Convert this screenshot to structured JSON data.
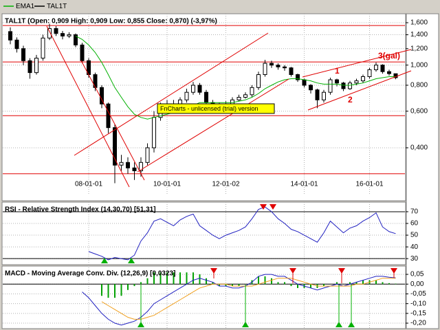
{
  "chart_data": [
    {
      "type": "candlestick",
      "title": "TAL1T (Open: 0,909  High: 0,909  Low: 0,855  Close: 0,870) (-3,97%)",
      "log_scale": true,
      "grid": true,
      "ylim": [
        0.24,
        1.74
      ],
      "yticks": [
        {
          "value": 0.4,
          "label": "0,400"
        },
        {
          "value": 0.6,
          "label": "0,600"
        },
        {
          "value": 0.8,
          "label": "0,800"
        },
        {
          "value": 1.0,
          "label": "1,000"
        },
        {
          "value": 1.2,
          "label": "1,200"
        },
        {
          "value": 1.4,
          "label": "1,400"
        },
        {
          "value": 1.6,
          "label": "1,600"
        }
      ],
      "categories": [
        null,
        null,
        null,
        null,
        null,
        null,
        null,
        null,
        null,
        null,
        null,
        null,
        "08-01-01",
        null,
        null,
        null,
        null,
        null,
        null,
        null,
        null,
        null,
        null,
        null,
        "10-01-01",
        null,
        null,
        null,
        null,
        null,
        null,
        null,
        null,
        "12-01-02",
        null,
        null,
        null,
        null,
        null,
        null,
        null,
        null,
        null,
        null,
        null,
        "14-01-01",
        null,
        null,
        null,
        null,
        null,
        null,
        null,
        null,
        null,
        "16-01-01",
        null,
        null,
        null,
        null
      ],
      "levels": [
        1.55,
        1.035,
        0.571,
        0.3
      ],
      "level_color": "#e00000",
      "annotations": [
        "1",
        "2",
        "3(gal)"
      ],
      "watermark": "FnCharts - unlicensed (trial) version",
      "series": [
        {
          "name": "TAL1T",
          "color": "#000000",
          "open": [
            1.45,
            1.32,
            1.2,
            1.05,
            0.92,
            1.08,
            1.35,
            1.5,
            1.42,
            1.38,
            1.4,
            1.25,
            1.05,
            0.9,
            0.78,
            0.65,
            0.5,
            0.33,
            0.34,
            0.32,
            0.31,
            0.34,
            0.4,
            0.56,
            0.62,
            0.65,
            0.62,
            0.68,
            0.74,
            0.8,
            0.74,
            0.66,
            0.62,
            0.64,
            0.65,
            0.68,
            0.7,
            0.72,
            0.78,
            0.9,
            1.02,
            1.0,
            0.98,
            0.97,
            0.9,
            0.85,
            0.8,
            0.76,
            0.68,
            0.74,
            0.85,
            0.82,
            0.77,
            0.82,
            0.84,
            0.88,
            0.95,
            1.0,
            0.93,
            0.909
          ],
          "high": [
            1.52,
            1.36,
            1.24,
            1.08,
            1.12,
            1.4,
            1.58,
            1.54,
            1.46,
            1.44,
            1.42,
            1.28,
            1.08,
            0.92,
            0.8,
            0.66,
            0.52,
            0.37,
            0.36,
            0.34,
            0.36,
            0.42,
            0.6,
            0.66,
            0.68,
            0.68,
            0.7,
            0.77,
            0.83,
            0.82,
            0.76,
            0.68,
            0.66,
            0.67,
            0.7,
            0.72,
            0.74,
            0.8,
            0.93,
            1.06,
            1.05,
            1.02,
            1.0,
            0.98,
            0.91,
            0.86,
            0.81,
            0.77,
            0.76,
            0.87,
            0.86,
            0.83,
            0.84,
            0.86,
            0.9,
            0.97,
            1.03,
            1.01,
            0.95,
            0.909
          ],
          "low": [
            1.26,
            1.15,
            1.0,
            0.86,
            0.9,
            1.05,
            1.32,
            1.38,
            1.33,
            1.35,
            1.22,
            1.02,
            0.87,
            0.75,
            0.62,
            0.47,
            0.27,
            0.31,
            0.3,
            0.28,
            0.29,
            0.33,
            0.38,
            0.54,
            0.6,
            0.6,
            0.6,
            0.66,
            0.72,
            0.72,
            0.64,
            0.6,
            0.61,
            0.62,
            0.64,
            0.67,
            0.69,
            0.7,
            0.76,
            0.88,
            0.97,
            0.95,
            0.94,
            0.88,
            0.83,
            0.78,
            0.73,
            0.62,
            0.66,
            0.72,
            0.79,
            0.75,
            0.76,
            0.8,
            0.82,
            0.86,
            0.93,
            0.91,
            0.89,
            0.855
          ],
          "close": [
            1.32,
            1.2,
            1.05,
            0.92,
            1.08,
            1.35,
            1.5,
            1.42,
            1.38,
            1.4,
            1.25,
            1.05,
            0.9,
            0.78,
            0.65,
            0.5,
            0.33,
            0.34,
            0.32,
            0.31,
            0.34,
            0.4,
            0.56,
            0.62,
            0.65,
            0.62,
            0.68,
            0.74,
            0.8,
            0.74,
            0.66,
            0.62,
            0.64,
            0.65,
            0.68,
            0.7,
            0.72,
            0.78,
            0.9,
            1.02,
            1.0,
            0.98,
            0.97,
            0.9,
            0.85,
            0.8,
            0.76,
            0.68,
            0.74,
            0.85,
            0.82,
            0.77,
            0.82,
            0.84,
            0.88,
            0.95,
            1.0,
            0.93,
            0.91,
            0.87
          ]
        },
        {
          "name": "EMA1",
          "color": "#00b000",
          "values": [
            null,
            null,
            null,
            null,
            null,
            null,
            null,
            null,
            null,
            null,
            1.38,
            1.33,
            1.25,
            1.15,
            1.03,
            0.9,
            0.78,
            0.7,
            0.63,
            0.58,
            0.56,
            0.55,
            0.56,
            0.57,
            0.58,
            0.59,
            0.6,
            0.62,
            0.64,
            0.66,
            0.66,
            0.66,
            0.66,
            0.66,
            0.66,
            0.67,
            0.68,
            0.7,
            0.73,
            0.77,
            0.8,
            0.83,
            0.85,
            0.86,
            0.86,
            0.85,
            0.84,
            0.82,
            0.81,
            0.81,
            0.81,
            0.8,
            0.8,
            0.81,
            0.82,
            0.84,
            0.86,
            0.87,
            0.88,
            0.88
          ]
        }
      ]
    },
    {
      "type": "line",
      "title": "RSI - Relative Strength Index (14,30,70) [51,31]",
      "grid": true,
      "ylim": [
        26,
        77
      ],
      "yticks": [
        30,
        40,
        50,
        60,
        70
      ],
      "levels": [
        30,
        70
      ],
      "level_color": "#000000",
      "series": [
        {
          "color": "#2020c0",
          "values": [
            null,
            null,
            null,
            null,
            null,
            null,
            null,
            null,
            null,
            null,
            null,
            null,
            36,
            34,
            32,
            29,
            31,
            30,
            29,
            33,
            45,
            52,
            62,
            64,
            61,
            58,
            63,
            66,
            68,
            58,
            54,
            50,
            47,
            50,
            52,
            54,
            57,
            64,
            72,
            74,
            70,
            64,
            60,
            55,
            53,
            50,
            47,
            44,
            52,
            62,
            57,
            52,
            56,
            58,
            62,
            65,
            69,
            57,
            53,
            51.31
          ]
        }
      ]
    },
    {
      "type": "macd",
      "title": "MACD - Moving Average Conv. Div. (12,26,9) [0,0323]",
      "grid": true,
      "ylim": [
        -0.221,
        0.089
      ],
      "yticks": [
        {
          "value": -0.2,
          "label": "-0,20"
        },
        {
          "value": -0.15,
          "label": "-0,15"
        },
        {
          "value": -0.1,
          "label": "-0,10"
        },
        {
          "value": -0.05,
          "label": "-0,05"
        },
        {
          "value": 0,
          "label": "0,00"
        },
        {
          "value": 0.05,
          "label": "0,05"
        }
      ],
      "levels": [
        0
      ],
      "level_color": "#000000",
      "histogram": {
        "color": "#00a000",
        "values": [
          null,
          null,
          null,
          null,
          null,
          null,
          null,
          null,
          null,
          null,
          null,
          null,
          null,
          null,
          -0.06,
          -0.07,
          -0.07,
          -0.06,
          -0.03,
          -0.01,
          0.01,
          0.03,
          0.06,
          0.06,
          0.06,
          0.06,
          0.06,
          0.06,
          0.06,
          0.05,
          0.03,
          0.01,
          -0.01,
          -0.01,
          -0.01,
          -0.01,
          0.0,
          0.02,
          0.04,
          0.04,
          0.03,
          0.01,
          0.01,
          -0.01,
          -0.02,
          -0.02,
          -0.02,
          -0.02,
          -0.01,
          0.0,
          0.01,
          0.0,
          0.01,
          0.01,
          0.02,
          0.02,
          0.02,
          0.01,
          0.005,
          0.0023
        ]
      },
      "series": [
        {
          "color": "#2020c0",
          "values": [
            null,
            null,
            null,
            null,
            null,
            null,
            null,
            null,
            null,
            null,
            null,
            -0.04,
            -0.07,
            -0.11,
            -0.15,
            -0.18,
            -0.2,
            -0.21,
            -0.2,
            -0.19,
            -0.17,
            -0.14,
            -0.1,
            -0.08,
            -0.06,
            -0.04,
            -0.02,
            0.0,
            0.02,
            0.03,
            0.02,
            0.01,
            -0.01,
            -0.01,
            -0.02,
            -0.02,
            -0.01,
            0.01,
            0.04,
            0.05,
            0.05,
            0.04,
            0.04,
            0.02,
            0.0,
            -0.01,
            -0.02,
            -0.03,
            -0.02,
            -0.01,
            0.0,
            -0.01,
            0.0,
            0.01,
            0.02,
            0.03,
            0.04,
            0.04,
            0.035,
            0.0323
          ]
        },
        {
          "color": "#f0a020",
          "values": [
            null,
            null,
            null,
            null,
            null,
            null,
            null,
            null,
            null,
            null,
            null,
            null,
            null,
            null,
            -0.09,
            -0.11,
            -0.13,
            -0.15,
            -0.17,
            -0.18,
            -0.18,
            -0.17,
            -0.16,
            -0.14,
            -0.12,
            -0.1,
            -0.08,
            -0.06,
            -0.04,
            -0.02,
            -0.01,
            0.0,
            0.0,
            0.0,
            -0.01,
            -0.01,
            -0.01,
            -0.01,
            0.0,
            0.01,
            0.02,
            0.03,
            0.03,
            0.03,
            0.02,
            0.01,
            0.0,
            -0.01,
            -0.01,
            -0.01,
            -0.01,
            -0.01,
            -0.01,
            0.0,
            0.0,
            0.01,
            0.02,
            0.03,
            0.03,
            0.03
          ]
        }
      ]
    }
  ]
}
